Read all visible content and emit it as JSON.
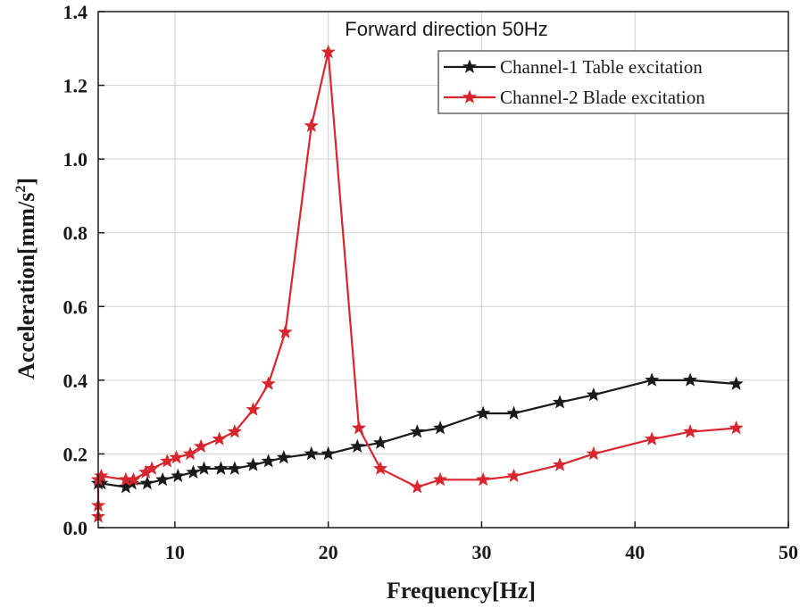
{
  "chart_data": {
    "type": "line",
    "title": "Forward direction 50Hz",
    "xlabel": "Frequency[Hz]",
    "ylabel": "Acceleration[mm/s²]",
    "ylabel_main": "Acceleration[mm/s",
    "ylabel_sup": "2",
    "ylabel_end": "]",
    "xlim": [
      5,
      50
    ],
    "ylim": [
      0,
      1.4
    ],
    "xticks": [
      10,
      20,
      30,
      40,
      50
    ],
    "yticks": [
      0.0,
      0.2,
      0.4,
      0.6,
      0.8,
      1.0,
      1.2,
      1.4
    ],
    "xtick_labels": [
      "10",
      "20",
      "30",
      "40",
      "50"
    ],
    "ytick_labels": [
      "0.0",
      "0.2",
      "0.4",
      "0.6",
      "0.8",
      "1.0",
      "1.2",
      "1.4"
    ],
    "grid": true,
    "legend_position": "top-right",
    "series": [
      {
        "name": "Channel-1 Table excitation",
        "color": "#1a1a1a",
        "marker": "star",
        "x": [
          5,
          5.2,
          6.8,
          7.2,
          8.2,
          9.2,
          10.2,
          11.2,
          11.9,
          13,
          13.9,
          15.1,
          16.1,
          17.1,
          18.9,
          20,
          21.9,
          23.4,
          25.8,
          27.3,
          30.1,
          32.1,
          35.1,
          37.3,
          41.1,
          43.6,
          46.6
        ],
        "y": [
          0.12,
          0.12,
          0.11,
          0.12,
          0.12,
          0.13,
          0.14,
          0.15,
          0.16,
          0.16,
          0.16,
          0.17,
          0.18,
          0.19,
          0.2,
          0.2,
          0.22,
          0.23,
          0.26,
          0.27,
          0.31,
          0.31,
          0.34,
          0.36,
          0.4,
          0.4,
          0.39
        ]
      },
      {
        "name": "Channel-2 Blade excitation",
        "color": "#d9262e",
        "marker": "star",
        "x": [
          5,
          5,
          5,
          5.2,
          6.8,
          7.3,
          8.1,
          8.5,
          9.5,
          10.1,
          11,
          11.7,
          12.9,
          13.9,
          15.1,
          16.1,
          17.2,
          18.9,
          20,
          22,
          23.4,
          25.8,
          27.3,
          30.1,
          32.1,
          35.1,
          37.3,
          41.1,
          43.6,
          46.6
        ],
        "y": [
          0.03,
          0.06,
          0.13,
          0.14,
          0.13,
          0.13,
          0.15,
          0.16,
          0.18,
          0.19,
          0.2,
          0.22,
          0.24,
          0.26,
          0.32,
          0.39,
          0.53,
          1.09,
          1.29,
          0.27,
          0.16,
          0.11,
          0.13,
          0.13,
          0.14,
          0.17,
          0.2,
          0.24,
          0.26,
          0.27
        ]
      }
    ]
  }
}
